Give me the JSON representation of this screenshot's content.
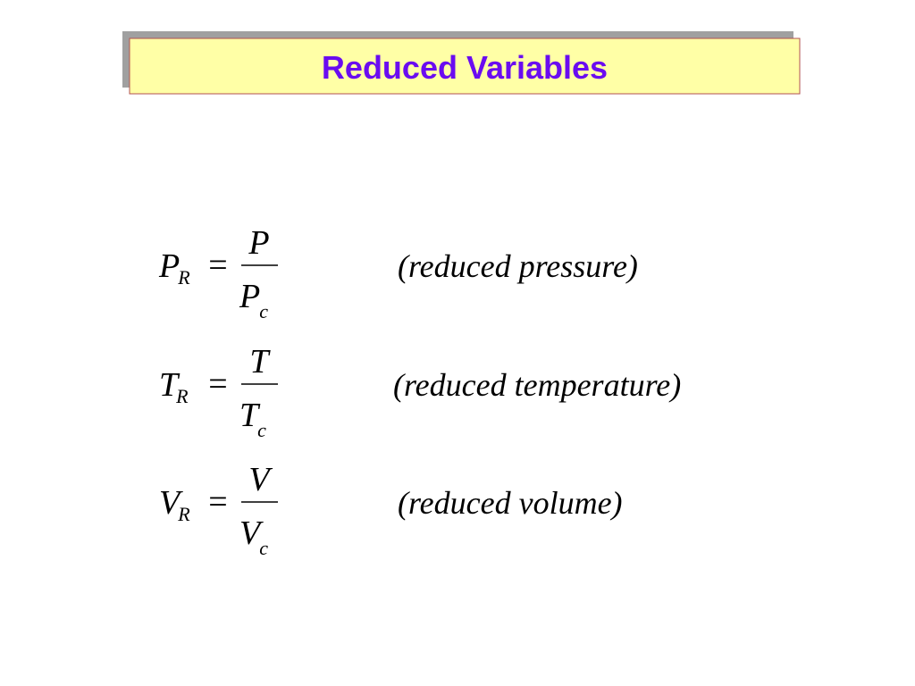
{
  "header": {
    "title": "Reduced Variables"
  },
  "equations": [
    {
      "symbol": "P",
      "symbol_sub": "R",
      "equals": "=",
      "numerator": "P",
      "denominator": "P",
      "denominator_sub": "c",
      "description": "(reduced pressure)"
    },
    {
      "symbol": "T",
      "symbol_sub": "R",
      "equals": "=",
      "numerator": "T",
      "denominator": "T",
      "denominator_sub": "c",
      "description": "(reduced temperature)"
    },
    {
      "symbol": "V",
      "symbol_sub": "R",
      "equals": "=",
      "numerator": "V",
      "denominator": "V",
      "denominator_sub": "c",
      "description": "(reduced volume)"
    }
  ]
}
